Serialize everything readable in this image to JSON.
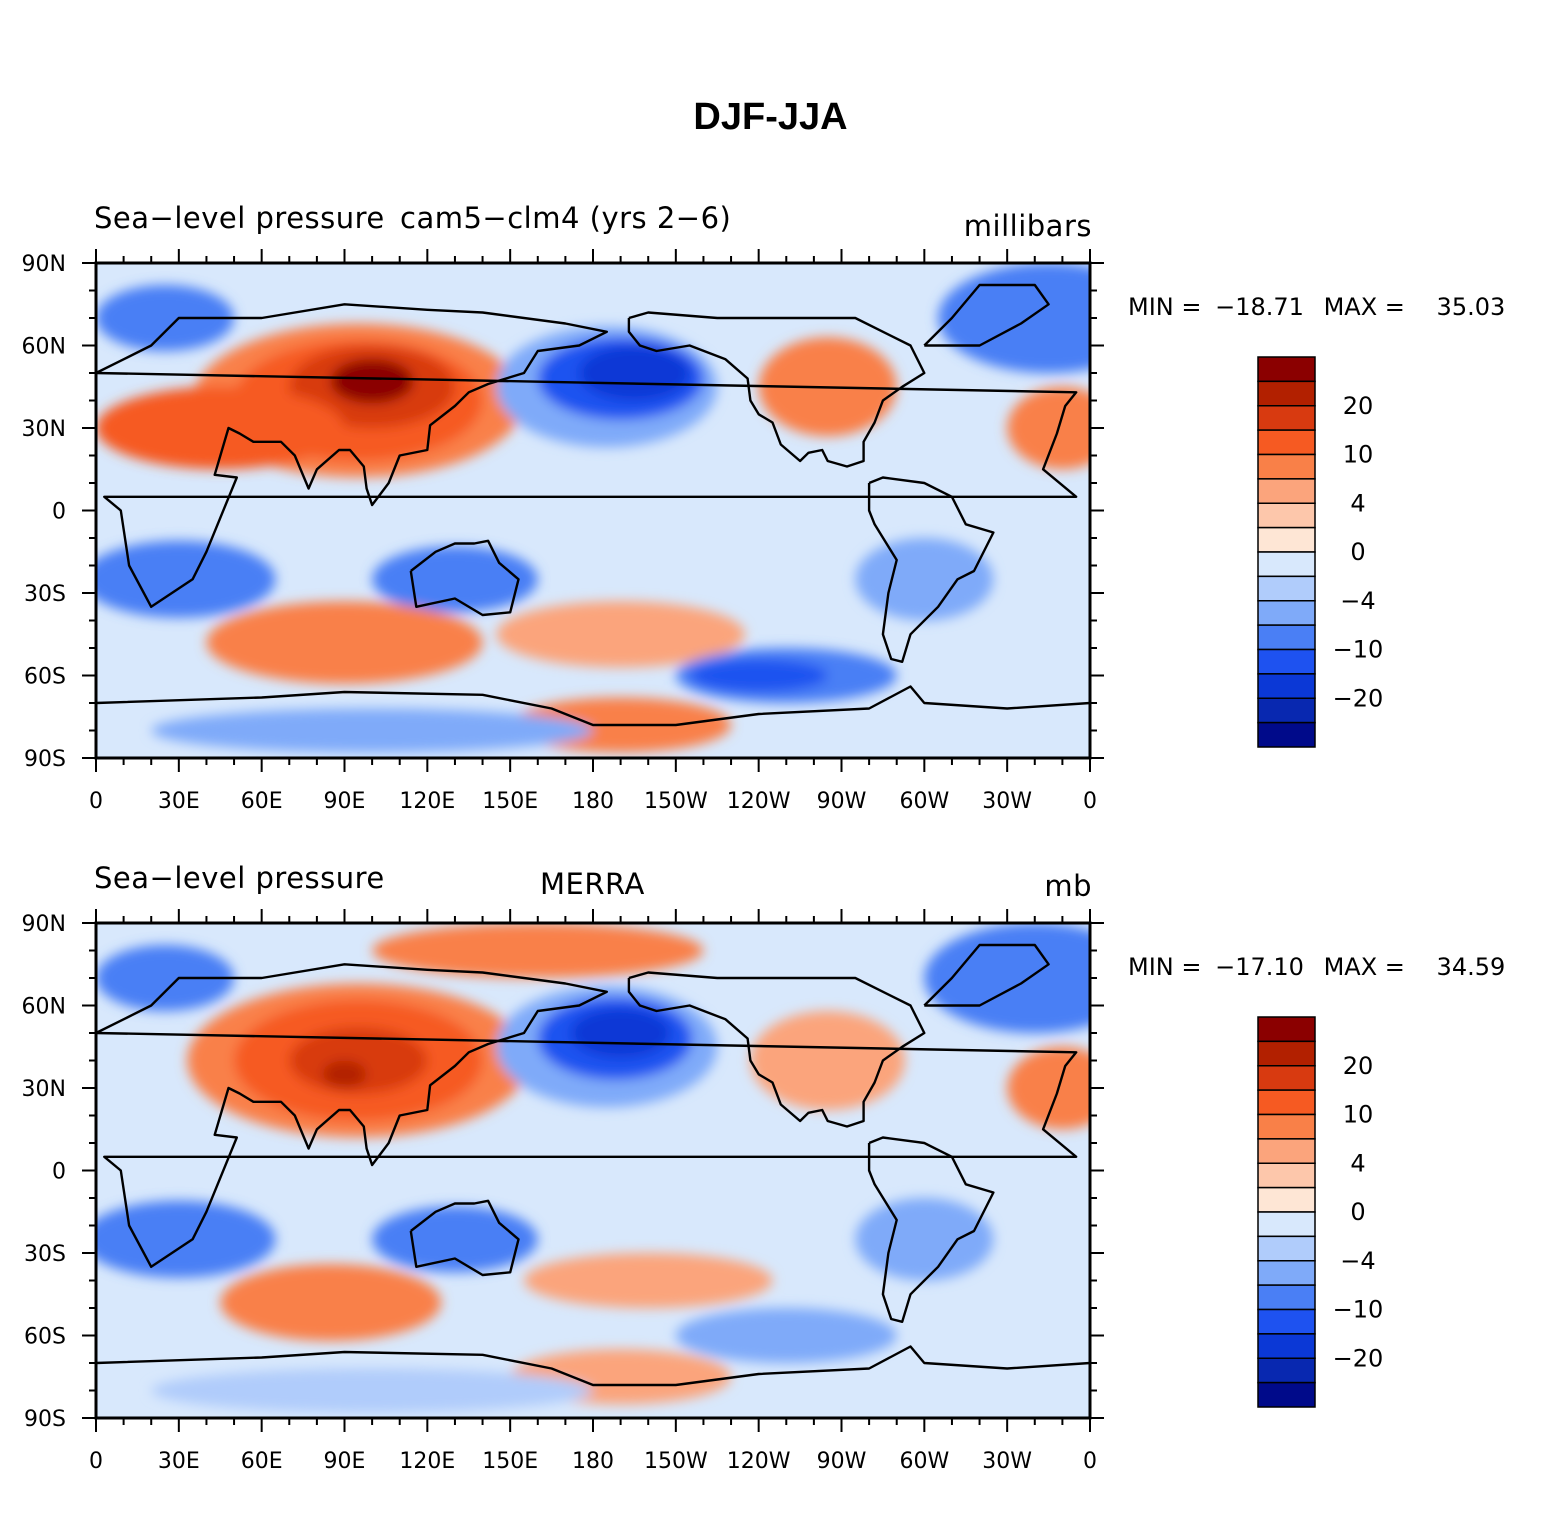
{
  "title": "DJF-JJA",
  "panels": [
    {
      "left_label": "Sea−level pressure",
      "center_label": "cam5−clm4 (yrs 2−6)",
      "right_label": "millibars",
      "min_label": "MIN =",
      "min_value": "−18.71",
      "max_label": "MAX =",
      "max_value": "35.03"
    },
    {
      "left_label": "Sea−level pressure",
      "center_label": "MERRA",
      "right_label": "mb",
      "min_label": "MIN =",
      "min_value": "−17.10",
      "max_label": "MAX =",
      "max_value": "34.59"
    }
  ],
  "lon_ticks": [
    "0",
    "30E",
    "60E",
    "90E",
    "120E",
    "150E",
    "180",
    "150W",
    "120W",
    "90W",
    "60W",
    "30W",
    "0"
  ],
  "lat_ticks": [
    "90N",
    "60N",
    "30N",
    "0",
    "30S",
    "60S",
    "90S"
  ],
  "colorbar": {
    "labels": [
      "20",
      "10",
      "4",
      "0",
      "−4",
      "−10",
      "−20"
    ],
    "colors": [
      "#8b0000",
      "#b22000",
      "#d83a10",
      "#f65a22",
      "#f98048",
      "#fba47c",
      "#fdc7ab",
      "#fee6d5",
      "#d8e8fc",
      "#b0ccfb",
      "#7faaf9",
      "#4a7ff5",
      "#1e52f0",
      "#0b38d6",
      "#0828b0",
      "#000a8a"
    ]
  },
  "fields": [
    {
      "name": "cam5-clm4",
      "background": "#d8e8fc",
      "features": [
        {
          "lon": 95,
          "lat": 40,
          "rlon": 60,
          "rlat": 28,
          "color": "#f98048"
        },
        {
          "lon": 95,
          "lat": 40,
          "rlon": 45,
          "rlat": 22,
          "color": "#f65a22"
        },
        {
          "lon": 100,
          "lat": 45,
          "rlon": 30,
          "rlat": 15,
          "color": "#d83a10"
        },
        {
          "lon": 100,
          "lat": 47,
          "rlon": 15,
          "rlat": 8,
          "color": "#8b0000"
        },
        {
          "lon": 45,
          "lat": 30,
          "rlon": 45,
          "rlat": 15,
          "color": "#f65a22"
        },
        {
          "lon": 25,
          "lat": 70,
          "rlon": 25,
          "rlat": 12,
          "color": "#4a7ff5"
        },
        {
          "lon": 185,
          "lat": 45,
          "rlon": 40,
          "rlat": 22,
          "color": "#7faaf9"
        },
        {
          "lon": 190,
          "lat": 48,
          "rlon": 30,
          "rlat": 15,
          "color": "#1e52f0"
        },
        {
          "lon": 195,
          "lat": 50,
          "rlon": 20,
          "rlat": 10,
          "color": "#0b38d6"
        },
        {
          "lon": 265,
          "lat": 45,
          "rlon": 25,
          "rlat": 18,
          "color": "#f98048"
        },
        {
          "lon": 345,
          "lat": 70,
          "rlon": 40,
          "rlat": 20,
          "color": "#4a7ff5"
        },
        {
          "lon": 350,
          "lat": 30,
          "rlon": 20,
          "rlat": 15,
          "color": "#f98048"
        },
        {
          "lon": 30,
          "lat": -25,
          "rlon": 35,
          "rlat": 14,
          "color": "#4a7ff5"
        },
        {
          "lon": 130,
          "lat": -25,
          "rlon": 30,
          "rlat": 12,
          "color": "#4a7ff5"
        },
        {
          "lon": 300,
          "lat": -25,
          "rlon": 25,
          "rlat": 15,
          "color": "#7faaf9"
        },
        {
          "lon": 90,
          "lat": -48,
          "rlon": 50,
          "rlat": 15,
          "color": "#f98048"
        },
        {
          "lon": 190,
          "lat": -45,
          "rlon": 45,
          "rlat": 12,
          "color": "#fba47c"
        },
        {
          "lon": 250,
          "lat": -60,
          "rlon": 40,
          "rlat": 10,
          "color": "#4a7ff5"
        },
        {
          "lon": 240,
          "lat": -60,
          "rlon": 25,
          "rlat": 6,
          "color": "#1e52f0"
        },
        {
          "lon": 190,
          "lat": -78,
          "rlon": 40,
          "rlat": 10,
          "color": "#f98048"
        },
        {
          "lon": 100,
          "lat": -80,
          "rlon": 80,
          "rlat": 8,
          "color": "#7faaf9"
        }
      ]
    },
    {
      "name": "MERRA",
      "background": "#d8e8fc",
      "features": [
        {
          "lon": 95,
          "lat": 40,
          "rlon": 62,
          "rlat": 28,
          "color": "#f98048"
        },
        {
          "lon": 95,
          "lat": 40,
          "rlon": 45,
          "rlat": 22,
          "color": "#f65a22"
        },
        {
          "lon": 95,
          "lat": 40,
          "rlon": 25,
          "rlat": 12,
          "color": "#d83a10"
        },
        {
          "lon": 90,
          "lat": 35,
          "rlon": 8,
          "rlat": 5,
          "color": "#b22000"
        },
        {
          "lon": 160,
          "lat": 80,
          "rlon": 60,
          "rlat": 10,
          "color": "#f98048"
        },
        {
          "lon": 25,
          "lat": 70,
          "rlon": 25,
          "rlat": 12,
          "color": "#4a7ff5"
        },
        {
          "lon": 185,
          "lat": 45,
          "rlon": 40,
          "rlat": 22,
          "color": "#7faaf9"
        },
        {
          "lon": 188,
          "lat": 48,
          "rlon": 28,
          "rlat": 15,
          "color": "#1e52f0"
        },
        {
          "lon": 190,
          "lat": 50,
          "rlon": 18,
          "rlat": 9,
          "color": "#0b38d6"
        },
        {
          "lon": 265,
          "lat": 40,
          "rlon": 28,
          "rlat": 18,
          "color": "#fba47c"
        },
        {
          "lon": 340,
          "lat": 70,
          "rlon": 40,
          "rlat": 20,
          "color": "#4a7ff5"
        },
        {
          "lon": 350,
          "lat": 30,
          "rlon": 20,
          "rlat": 15,
          "color": "#f98048"
        },
        {
          "lon": 30,
          "lat": -25,
          "rlon": 35,
          "rlat": 14,
          "color": "#4a7ff5"
        },
        {
          "lon": 130,
          "lat": -25,
          "rlon": 30,
          "rlat": 12,
          "color": "#4a7ff5"
        },
        {
          "lon": 300,
          "lat": -25,
          "rlon": 25,
          "rlat": 15,
          "color": "#7faaf9"
        },
        {
          "lon": 85,
          "lat": -48,
          "rlon": 40,
          "rlat": 14,
          "color": "#f98048"
        },
        {
          "lon": 200,
          "lat": -40,
          "rlon": 45,
          "rlat": 10,
          "color": "#fba47c"
        },
        {
          "lon": 250,
          "lat": -60,
          "rlon": 40,
          "rlat": 10,
          "color": "#7faaf9"
        },
        {
          "lon": 190,
          "lat": -75,
          "rlon": 40,
          "rlat": 10,
          "color": "#fba47c"
        },
        {
          "lon": 100,
          "lat": -80,
          "rlon": 80,
          "rlat": 8,
          "color": "#b0ccfb"
        }
      ]
    }
  ]
}
